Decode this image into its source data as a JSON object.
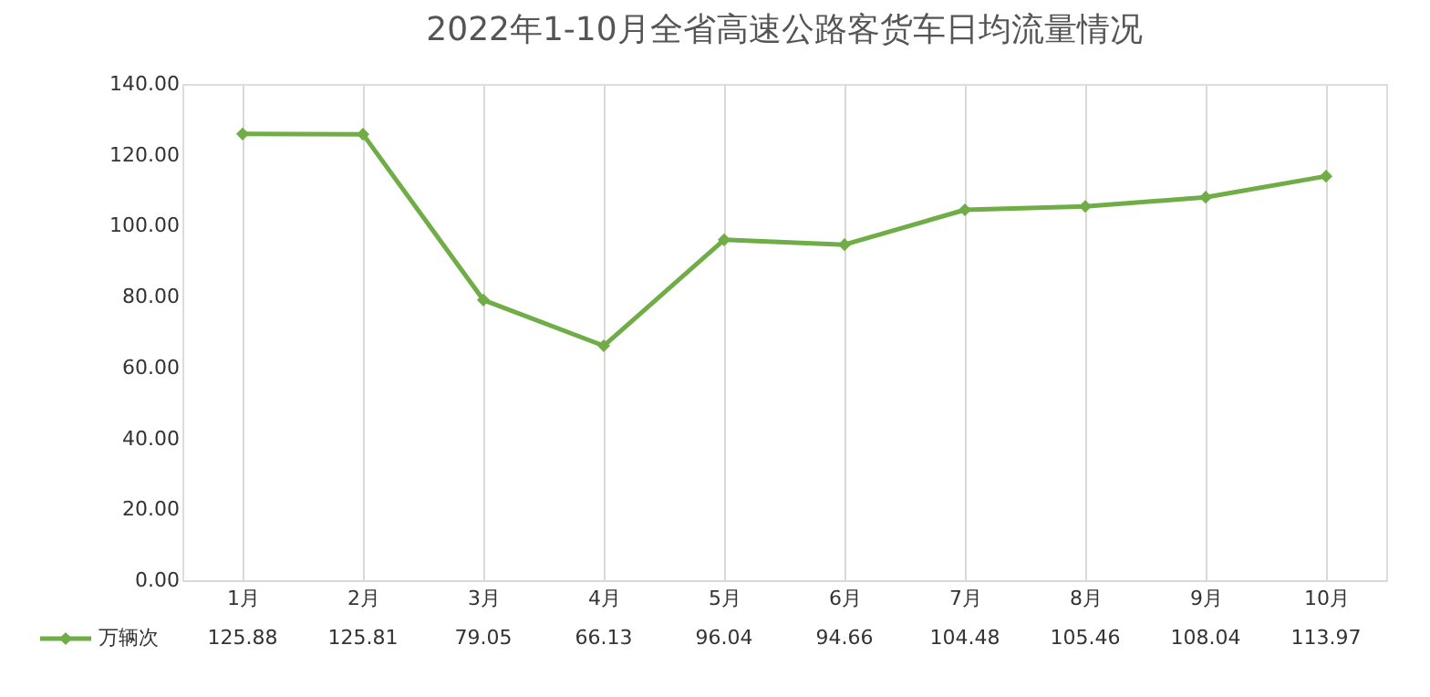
{
  "chart_data": {
    "type": "line",
    "title": "2022年1-10月全省高速公路客货车日均流量情况",
    "categories": [
      "1月",
      "2月",
      "3月",
      "4月",
      "5月",
      "6月",
      "7月",
      "8月",
      "9月",
      "10月"
    ],
    "series": [
      {
        "name": "万辆次",
        "color": "#70ad47",
        "values": [
          125.88,
          125.81,
          79.05,
          66.13,
          96.04,
          94.66,
          104.48,
          105.46,
          108.04,
          113.97
        ]
      }
    ],
    "ylim": [
      0,
      140
    ],
    "yticks": [
      {
        "value": 0,
        "label": "0.00"
      },
      {
        "value": 20,
        "label": "20.00"
      },
      {
        "value": 40,
        "label": "40.00"
      },
      {
        "value": 60,
        "label": "60.00"
      },
      {
        "value": 80,
        "label": "80.00"
      },
      {
        "value": 100,
        "label": "100.00"
      },
      {
        "value": 120,
        "label": "120.00"
      },
      {
        "value": 140,
        "label": "140.00"
      }
    ],
    "grid": "x",
    "legend": "bottom",
    "marker": "diamond",
    "line_style": "solid",
    "data_labels": true
  }
}
